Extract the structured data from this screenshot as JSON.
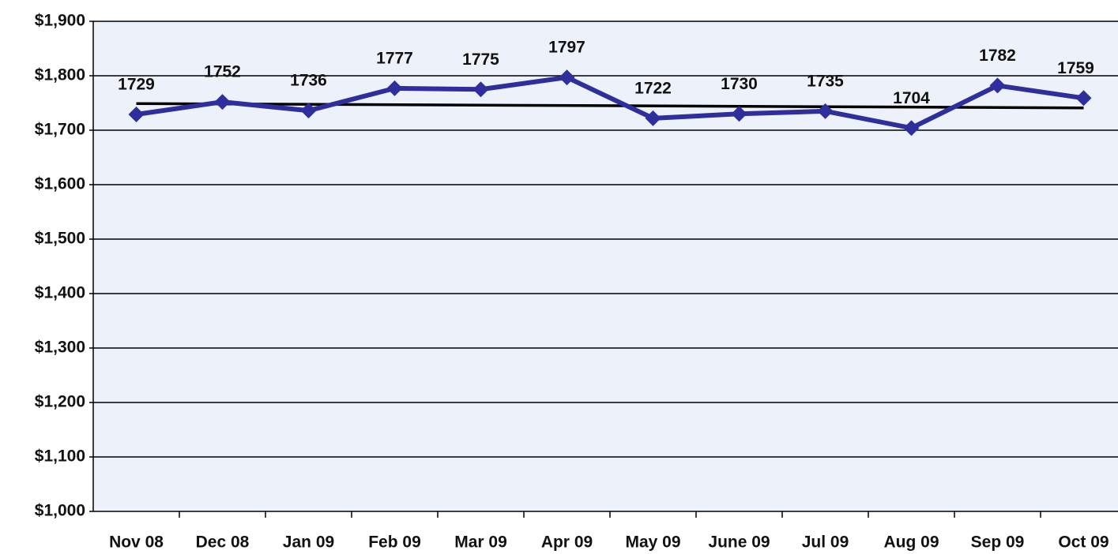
{
  "chart_data": {
    "type": "line",
    "categories": [
      "Nov 08",
      "Dec 08",
      "Jan 09",
      "Feb 09",
      "Mar 09",
      "Apr 09",
      "May 09",
      "June 09",
      "Jul 09",
      "Aug 09",
      "Sep 09",
      "Oct 09"
    ],
    "series": [
      {
        "color": "#2e2e9c",
        "values": [
          1729,
          1752,
          1736,
          1777,
          1775,
          1797,
          1722,
          1730,
          1735,
          1704,
          1782,
          1759
        ]
      }
    ],
    "trend": {
      "color": "#000000",
      "start": 1749,
      "end": 1741
    },
    "ylim": [
      1000,
      1900
    ],
    "yticks": [
      {
        "value": 1000,
        "label": "$1,000"
      },
      {
        "value": 1100,
        "label": "$1,100"
      },
      {
        "value": 1200,
        "label": "$1,200"
      },
      {
        "value": 1300,
        "label": "$1,300"
      },
      {
        "value": 1400,
        "label": "$1,400"
      },
      {
        "value": 1500,
        "label": "$1,500"
      },
      {
        "value": 1600,
        "label": "$1,600"
      },
      {
        "value": 1700,
        "label": "$1,700"
      },
      {
        "value": 1800,
        "label": "$1,800"
      },
      {
        "value": 1900,
        "label": "$1,900"
      }
    ],
    "grid": true
  }
}
